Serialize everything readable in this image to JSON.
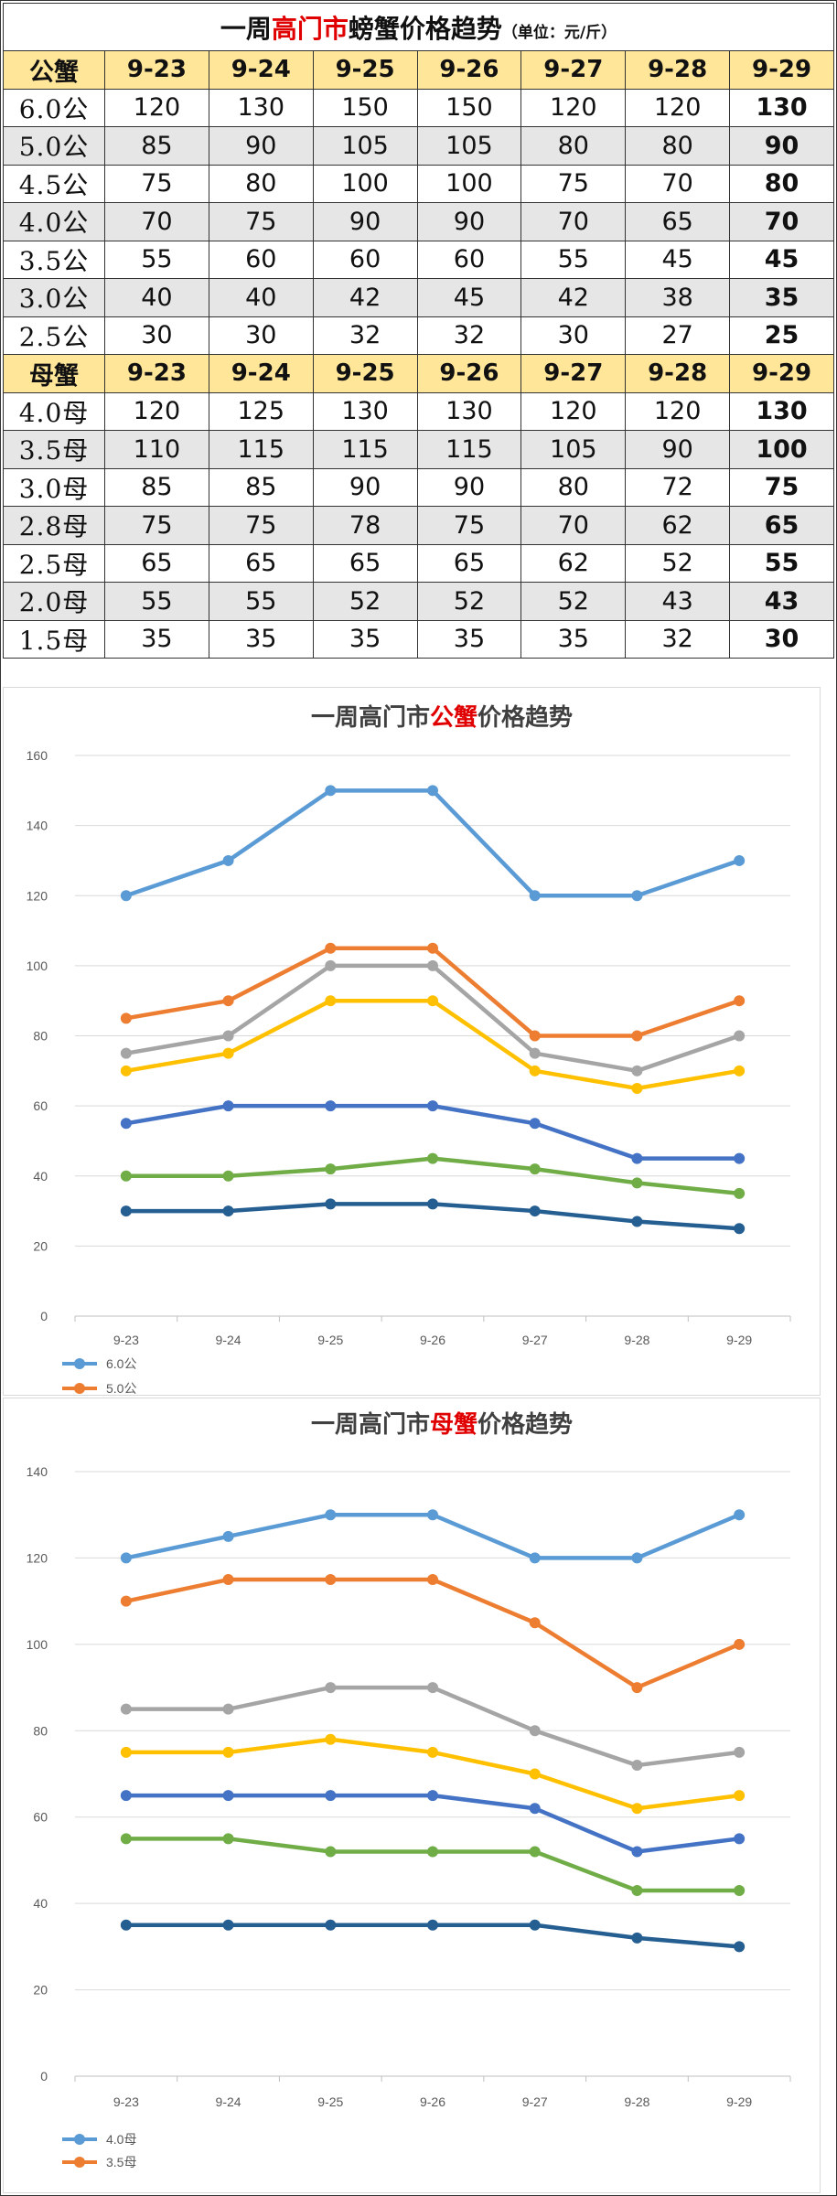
{
  "table": {
    "title_prefix": "一周",
    "title_highlight": "高门市",
    "title_suffix": "螃蟹价格趋势",
    "title_unit": "（单位：元/斤）",
    "male_header": "公蟹",
    "female_header": "母蟹",
    "dates": [
      "9-23",
      "9-24",
      "9-25",
      "9-26",
      "9-27",
      "9-28",
      "9-29"
    ],
    "male_rows": [
      {
        "label": "6.0公",
        "values": [
          "120",
          "130",
          "150",
          "150",
          "120",
          "120",
          "130"
        ]
      },
      {
        "label": "5.0公",
        "values": [
          "85",
          "90",
          "105",
          "105",
          "80",
          "80",
          "90"
        ]
      },
      {
        "label": "4.5公",
        "values": [
          "75",
          "80",
          "100",
          "100",
          "75",
          "70",
          "80"
        ]
      },
      {
        "label": "4.0公",
        "values": [
          "70",
          "75",
          "90",
          "90",
          "70",
          "65",
          "70"
        ]
      },
      {
        "label": "3.5公",
        "values": [
          "55",
          "60",
          "60",
          "60",
          "55",
          "45",
          "45"
        ]
      },
      {
        "label": "3.0公",
        "values": [
          "40",
          "40",
          "42",
          "45",
          "42",
          "38",
          "35"
        ]
      },
      {
        "label": "2.5公",
        "values": [
          "30",
          "30",
          "32",
          "32",
          "30",
          "27",
          "25"
        ]
      }
    ],
    "female_rows": [
      {
        "label": "4.0母",
        "values": [
          "120",
          "125",
          "130",
          "130",
          "120",
          "120",
          "130"
        ]
      },
      {
        "label": "3.5母",
        "values": [
          "110",
          "115",
          "115",
          "115",
          "105",
          "90",
          "100"
        ]
      },
      {
        "label": "3.0母",
        "values": [
          "85",
          "85",
          "90",
          "90",
          "80",
          "72",
          "75"
        ]
      },
      {
        "label": "2.8母",
        "values": [
          "75",
          "75",
          "78",
          "75",
          "70",
          "62",
          "65"
        ]
      },
      {
        "label": "2.5母",
        "values": [
          "65",
          "65",
          "65",
          "65",
          "62",
          "52",
          "55"
        ]
      },
      {
        "label": "2.0母",
        "values": [
          "55",
          "55",
          "52",
          "52",
          "52",
          "43",
          "43"
        ]
      },
      {
        "label": "1.5母",
        "values": [
          "35",
          "35",
          "35",
          "35",
          "35",
          "32",
          "30"
        ]
      }
    ]
  },
  "chart_data": [
    {
      "type": "line",
      "title_prefix": "一周高门市",
      "title_highlight": "公蟹",
      "title_suffix": "价格趋势",
      "categories": [
        "9-23",
        "9-24",
        "9-25",
        "9-26",
        "9-27",
        "9-28",
        "9-29"
      ],
      "ylim": [
        0,
        160
      ],
      "yticks": [
        0,
        20,
        40,
        60,
        80,
        100,
        120,
        140,
        160
      ],
      "grid": true,
      "legend_position": "bottom-left",
      "visible_legend": [
        {
          "name": "6.0公",
          "color": "#5b9bd5"
        },
        {
          "name": "5.0公",
          "color": "#ed7d31"
        }
      ],
      "series": [
        {
          "name": "6.0公",
          "color": "#5b9bd5",
          "values": [
            120,
            130,
            150,
            150,
            120,
            120,
            130
          ]
        },
        {
          "name": "5.0公",
          "color": "#ed7d31",
          "values": [
            85,
            90,
            105,
            105,
            80,
            80,
            90
          ]
        },
        {
          "name": "4.5公",
          "color": "#a5a5a5",
          "values": [
            75,
            80,
            100,
            100,
            75,
            70,
            80
          ]
        },
        {
          "name": "4.0公",
          "color": "#ffc000",
          "values": [
            70,
            75,
            90,
            90,
            70,
            65,
            70
          ]
        },
        {
          "name": "3.5公",
          "color": "#4472c4",
          "values": [
            55,
            60,
            60,
            60,
            55,
            45,
            45
          ]
        },
        {
          "name": "3.0公",
          "color": "#70ad47",
          "values": [
            40,
            40,
            42,
            45,
            42,
            38,
            35
          ]
        },
        {
          "name": "2.5公",
          "color": "#255e91",
          "values": [
            30,
            30,
            32,
            32,
            30,
            27,
            25
          ]
        }
      ]
    },
    {
      "type": "line",
      "title_prefix": "一周高门市",
      "title_highlight": "母蟹",
      "title_suffix": "价格趋势",
      "categories": [
        "9-23",
        "9-24",
        "9-25",
        "9-26",
        "9-27",
        "9-28",
        "9-29"
      ],
      "ylim": [
        0,
        140
      ],
      "yticks": [
        0,
        20,
        40,
        60,
        80,
        100,
        120,
        140
      ],
      "grid": true,
      "legend_position": "bottom-left",
      "visible_legend": [
        {
          "name": "4.0母",
          "color": "#5b9bd5"
        },
        {
          "name": "3.5母",
          "color": "#ed7d31"
        }
      ],
      "series": [
        {
          "name": "4.0母",
          "color": "#5b9bd5",
          "values": [
            120,
            125,
            130,
            130,
            120,
            120,
            130
          ]
        },
        {
          "name": "3.5母",
          "color": "#ed7d31",
          "values": [
            110,
            115,
            115,
            115,
            105,
            90,
            100
          ]
        },
        {
          "name": "3.0母",
          "color": "#a5a5a5",
          "values": [
            85,
            85,
            90,
            90,
            80,
            72,
            75
          ]
        },
        {
          "name": "2.8母",
          "color": "#ffc000",
          "values": [
            75,
            75,
            78,
            75,
            70,
            62,
            65
          ]
        },
        {
          "name": "2.5母",
          "color": "#4472c4",
          "values": [
            65,
            65,
            65,
            65,
            62,
            52,
            55
          ]
        },
        {
          "name": "2.0母",
          "color": "#70ad47",
          "values": [
            55,
            55,
            52,
            52,
            52,
            43,
            43
          ]
        },
        {
          "name": "1.5母",
          "color": "#255e91",
          "values": [
            35,
            35,
            35,
            35,
            35,
            32,
            30
          ]
        }
      ]
    }
  ]
}
